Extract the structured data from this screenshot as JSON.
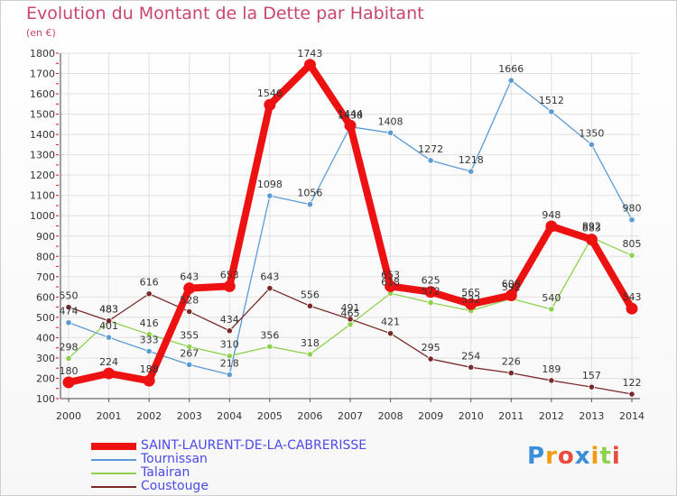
{
  "page": {
    "title": "Evolution du Montant de la Dette par Habitant",
    "unit": "(en €)",
    "logo_text": "Proxiti",
    "colors": {
      "title": "#c8466e",
      "legend_text": "#4a4ae8",
      "grid": "#e0e0e0",
      "tick_marks": "#ff0000"
    }
  },
  "chart_data": {
    "type": "line",
    "title": "Evolution du Montant de la Dette par Habitant",
    "ylabel": "(en €)",
    "xlabel": "",
    "x": [
      "2000",
      "2001",
      "2002",
      "2003",
      "2004",
      "2005",
      "2006",
      "2007",
      "2008",
      "2009",
      "2010",
      "2011",
      "2012",
      "2013",
      "2014"
    ],
    "yticks": [
      100,
      200,
      300,
      400,
      500,
      600,
      700,
      800,
      900,
      1000,
      1100,
      1200,
      1300,
      1400,
      1500,
      1600,
      1700,
      1800
    ],
    "ylim": [
      100,
      1800
    ],
    "grid": true,
    "legend_position": "bottom-left",
    "series": [
      {
        "name": "SAINT-LAURENT-DE-LA-CABRERISSE",
        "color": "#ee1111",
        "emphasis": true,
        "values": [
          180,
          224,
          188,
          643,
          653,
          1546,
          1743,
          1444,
          653,
          625,
          565,
          608,
          948,
          883,
          543
        ],
        "labels": [
          "180",
          "224",
          "188",
          "643",
          "653",
          "1546",
          "1743",
          "1444",
          "653",
          "625",
          "565",
          "608",
          "948",
          "883",
          "543"
        ]
      },
      {
        "name": "Tournissan",
        "color": "#5b9bd5",
        "values": [
          474,
          401,
          333,
          267,
          218,
          1098,
          1056,
          1438,
          1408,
          1272,
          1218,
          1666,
          1512,
          1350,
          980
        ],
        "labels": [
          "474",
          "401",
          "333",
          "267",
          "218",
          "1098",
          "1056",
          "1438",
          "1408",
          "1272",
          "1218",
          "1666",
          "1512",
          "1350",
          "980"
        ]
      },
      {
        "name": "Talairan",
        "color": "#8fd14f",
        "values": [
          298,
          483,
          416,
          355,
          310,
          356,
          318,
          465,
          618,
          572,
          532,
          592,
          540,
          892,
          805
        ],
        "labels": [
          "298",
          "483",
          "416",
          "355",
          "310",
          "356",
          "318",
          "465",
          "618",
          "572",
          "532",
          "592",
          "540",
          "892",
          "805"
        ]
      },
      {
        "name": "Coustouge",
        "color": "#7a2a2a",
        "values": [
          550,
          483,
          616,
          528,
          434,
          643,
          556,
          491,
          421,
          295,
          254,
          226,
          189,
          157,
          122
        ],
        "labels": [
          "550",
          "483",
          "616",
          "528",
          "434",
          "643",
          "556",
          "491",
          "421",
          "295",
          "254",
          "226",
          "189",
          "157",
          "122"
        ]
      }
    ]
  }
}
